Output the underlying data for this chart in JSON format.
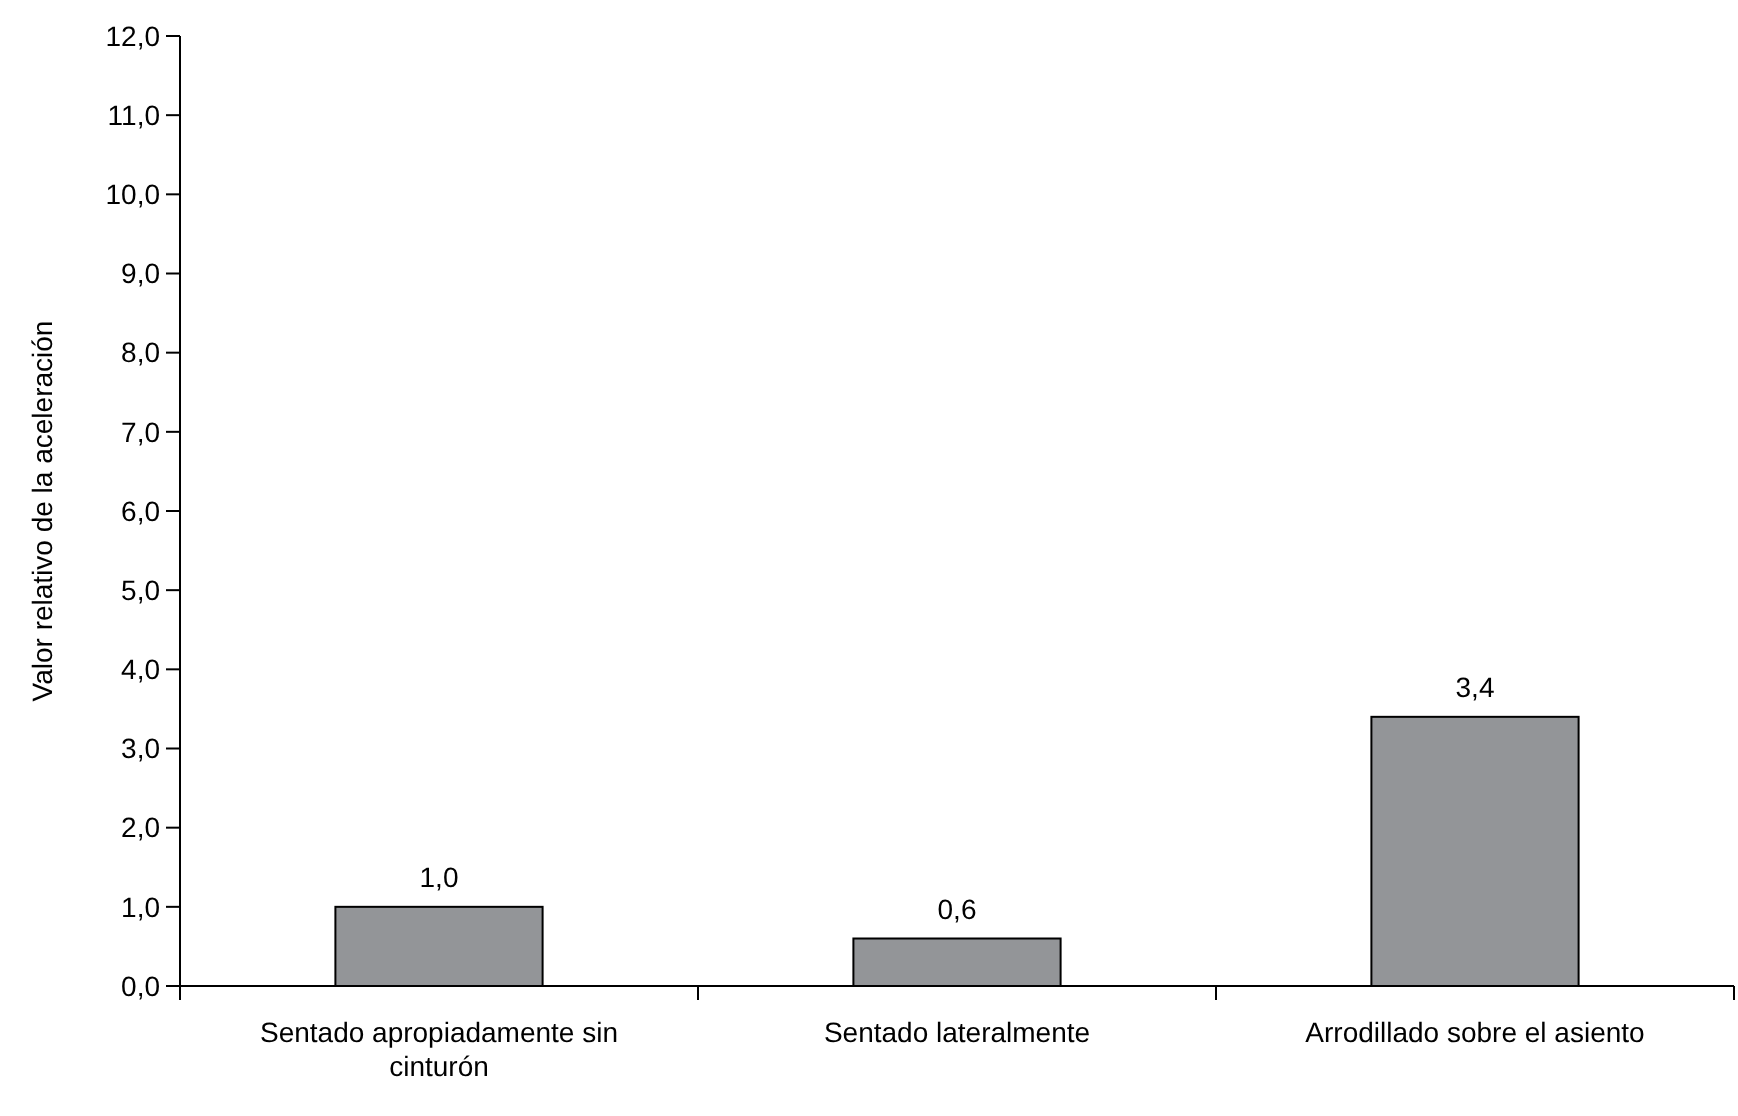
{
  "chart_data": {
    "type": "bar",
    "ylabel": "Valor relativo de la aceleración",
    "categories": [
      "Sentado apropiadamente sin cinturón",
      "Sentado lateralmente",
      "Arrodillado sobre el asiento"
    ],
    "values": [
      1.0,
      0.6,
      3.4
    ],
    "value_labels": [
      "1,0",
      "0,6",
      "3,4"
    ],
    "color": "#939598",
    "ylim": [
      0,
      12
    ],
    "yticks": [
      {
        "value": 0,
        "label": "0,0"
      },
      {
        "value": 1,
        "label": "1,0"
      },
      {
        "value": 2,
        "label": "2,0"
      },
      {
        "value": 3,
        "label": "3,0"
      },
      {
        "value": 4,
        "label": "4,0"
      },
      {
        "value": 5,
        "label": "5,0"
      },
      {
        "value": 6,
        "label": "6,0"
      },
      {
        "value": 7,
        "label": "7,0"
      },
      {
        "value": 8,
        "label": "8,0"
      },
      {
        "value": 9,
        "label": "9,0"
      },
      {
        "value": 10,
        "label": "10,0"
      },
      {
        "value": 11,
        "label": "11,0"
      },
      {
        "value": 12,
        "label": "12,0"
      }
    ],
    "grid": false
  }
}
